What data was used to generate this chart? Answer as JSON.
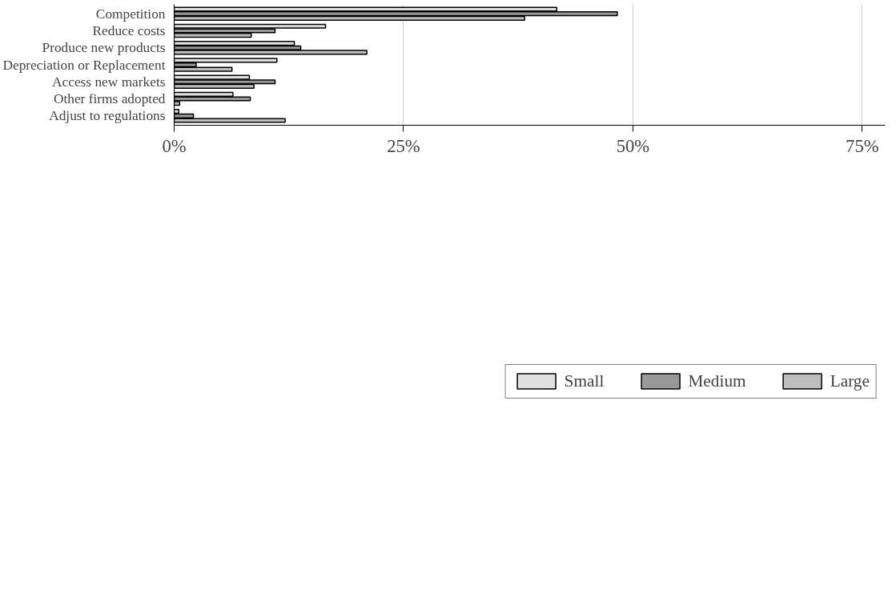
{
  "chart_data": {
    "type": "bar",
    "orientation": "horizontal",
    "categories": [
      "Competition",
      "Reduce costs",
      "Produce new products",
      "Depreciation or Replacement",
      "Access new markets",
      "Other firms adopted",
      "Adjust to regulations"
    ],
    "series": [
      {
        "name": "Small",
        "color": "#e0e0e0",
        "values": [
          41.7,
          16.5,
          13.1,
          11.2,
          8.2,
          6.4,
          0.5
        ]
      },
      {
        "name": "Medium",
        "color": "#999999",
        "values": [
          48.3,
          11.0,
          13.8,
          2.4,
          11.0,
          8.3,
          2.1
        ]
      },
      {
        "name": "Large",
        "color": "#bebebe",
        "values": [
          38.2,
          8.4,
          21.0,
          6.3,
          8.7,
          0.6,
          12.1
        ]
      }
    ],
    "xlim": [
      0,
      77.5
    ],
    "xticks": [
      {
        "value": 0,
        "label": "0%"
      },
      {
        "value": 25,
        "label": "25%"
      },
      {
        "value": 50,
        "label": "50%"
      },
      {
        "value": 75,
        "label": "75%"
      }
    ],
    "grid": "x",
    "legend": "bottom"
  }
}
